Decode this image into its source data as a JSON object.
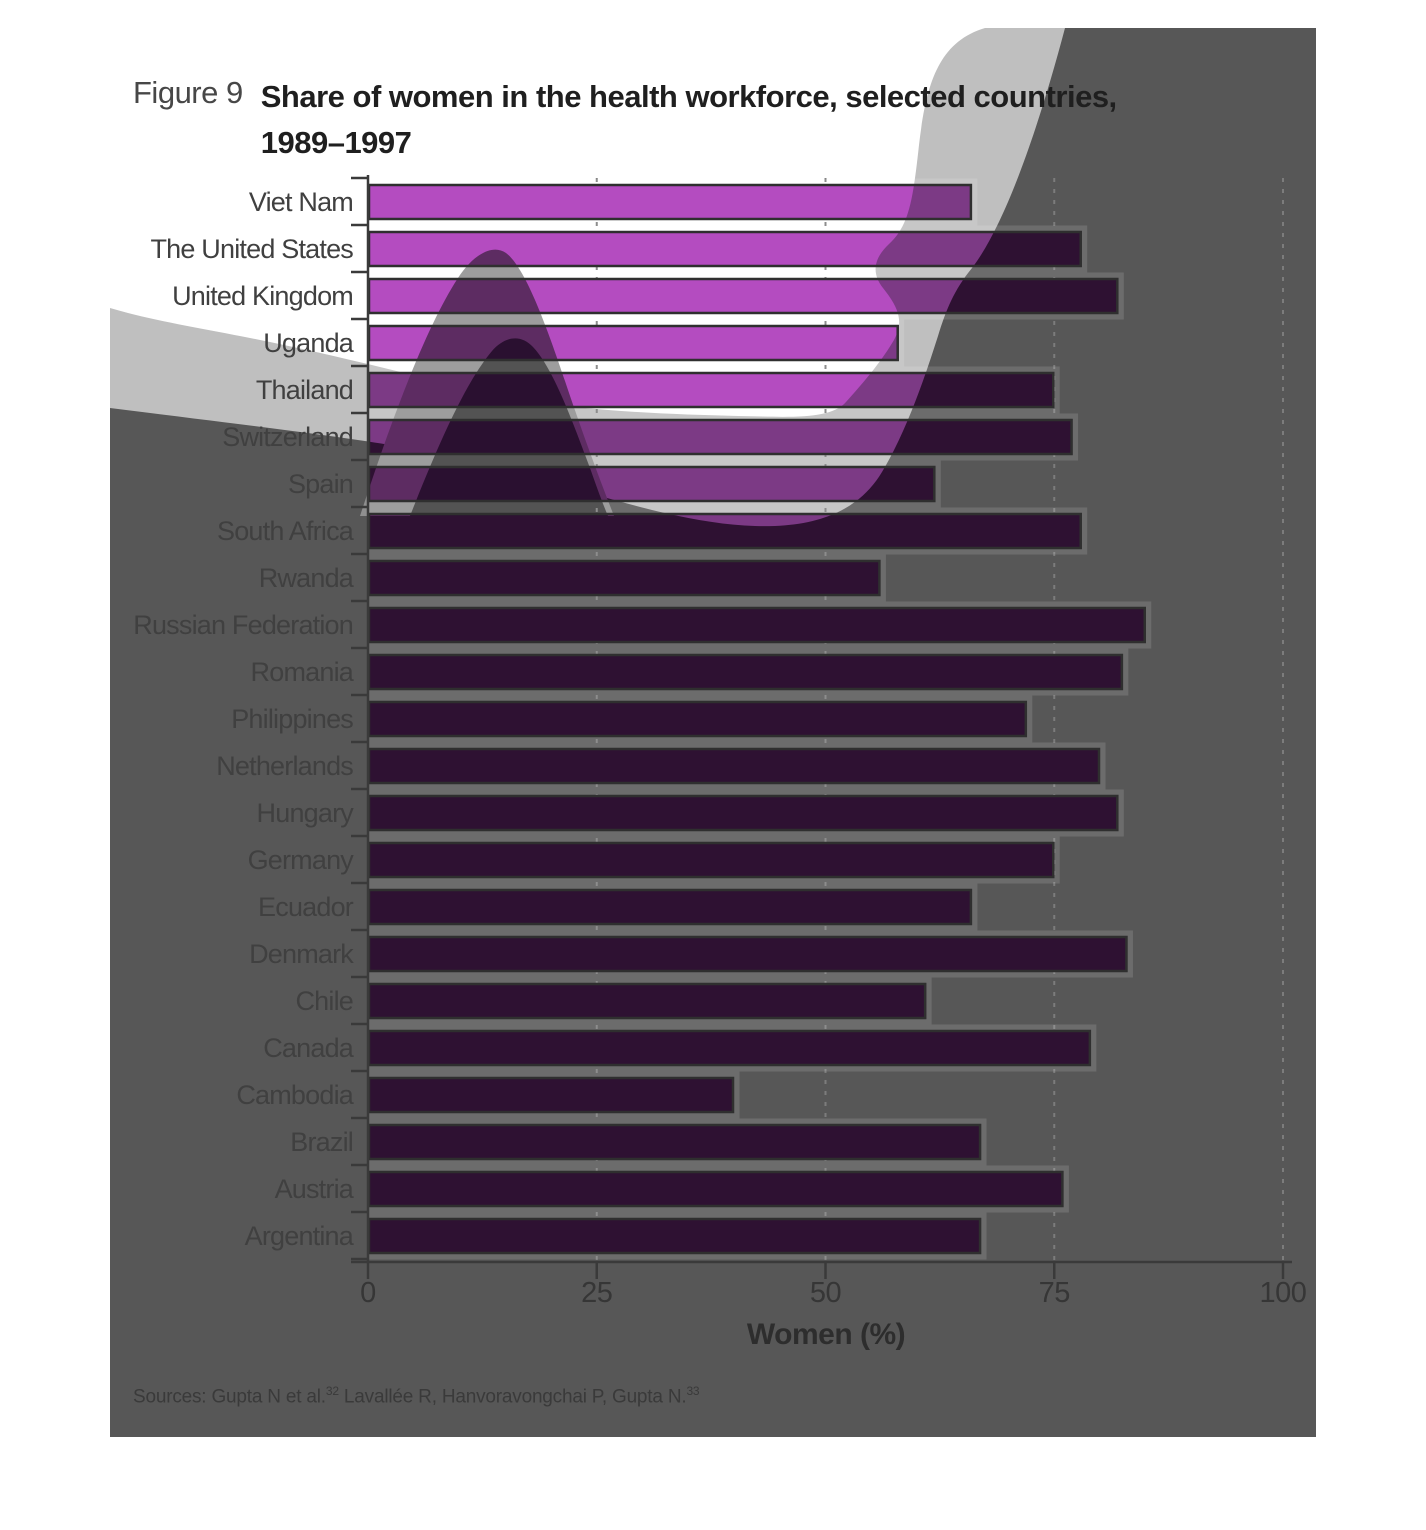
{
  "figure": {
    "label": "Figure 9",
    "title_line1": "Share of women in the health workforce, selected countries,",
    "title_line2": "1989–1997"
  },
  "chart_data": {
    "type": "bar",
    "orientation": "horizontal",
    "title": "Share of women in the health workforce, selected countries, 1989–1997",
    "categories": [
      "Viet Nam",
      "The United States",
      "United Kingdom",
      "Uganda",
      "Thailand",
      "Switzerland",
      "Spain",
      "South Africa",
      "Rwanda",
      "Russian Federation",
      "Romania",
      "Philippines",
      "Netherlands",
      "Hungary",
      "Germany",
      "Ecuador",
      "Denmark",
      "Chile",
      "Canada",
      "Cambodia",
      "Brazil",
      "Austria",
      "Argentina"
    ],
    "values": [
      66,
      78,
      82,
      58,
      75,
      77,
      62,
      78,
      56,
      85,
      82.5,
      72,
      80,
      82,
      75,
      66,
      83,
      61,
      79,
      40,
      67,
      76,
      67
    ],
    "xlabel": "Women (%)",
    "xticks": [
      0,
      25,
      50,
      75,
      100
    ],
    "xlim": [
      0,
      100
    ],
    "grid": "dashed-vertical",
    "legend": "none"
  },
  "source_note": {
    "prefix": "Sources: Gupta N et al.",
    "sup1": "32",
    "middle": " Lavallée R, Hanvoravongchai P, Gupta N.",
    "sup2": "33"
  },
  "colors": {
    "page_background": "#ffffff",
    "panel_background": "#575757",
    "swoosh_light_gray": "#bfbfbf",
    "wave_white": "#ffffff",
    "hump_mid_gray": "#8f8f8f",
    "hump_dark_gray": "#3a3a3a",
    "bar_on_dark": "#2e1132",
    "bar_on_white": "#b44cc0",
    "bar_on_swoosh": "#7c3a85",
    "bar_on_mid_hump": "#5d2c62",
    "bar_on_dark_hump": "#2a1030",
    "bar_outline": "#2f2f2f",
    "bar_halo": "rgba(255,255,255,0.13)",
    "gridline": "#7c7c7c",
    "axis": "#3a3a3a"
  }
}
